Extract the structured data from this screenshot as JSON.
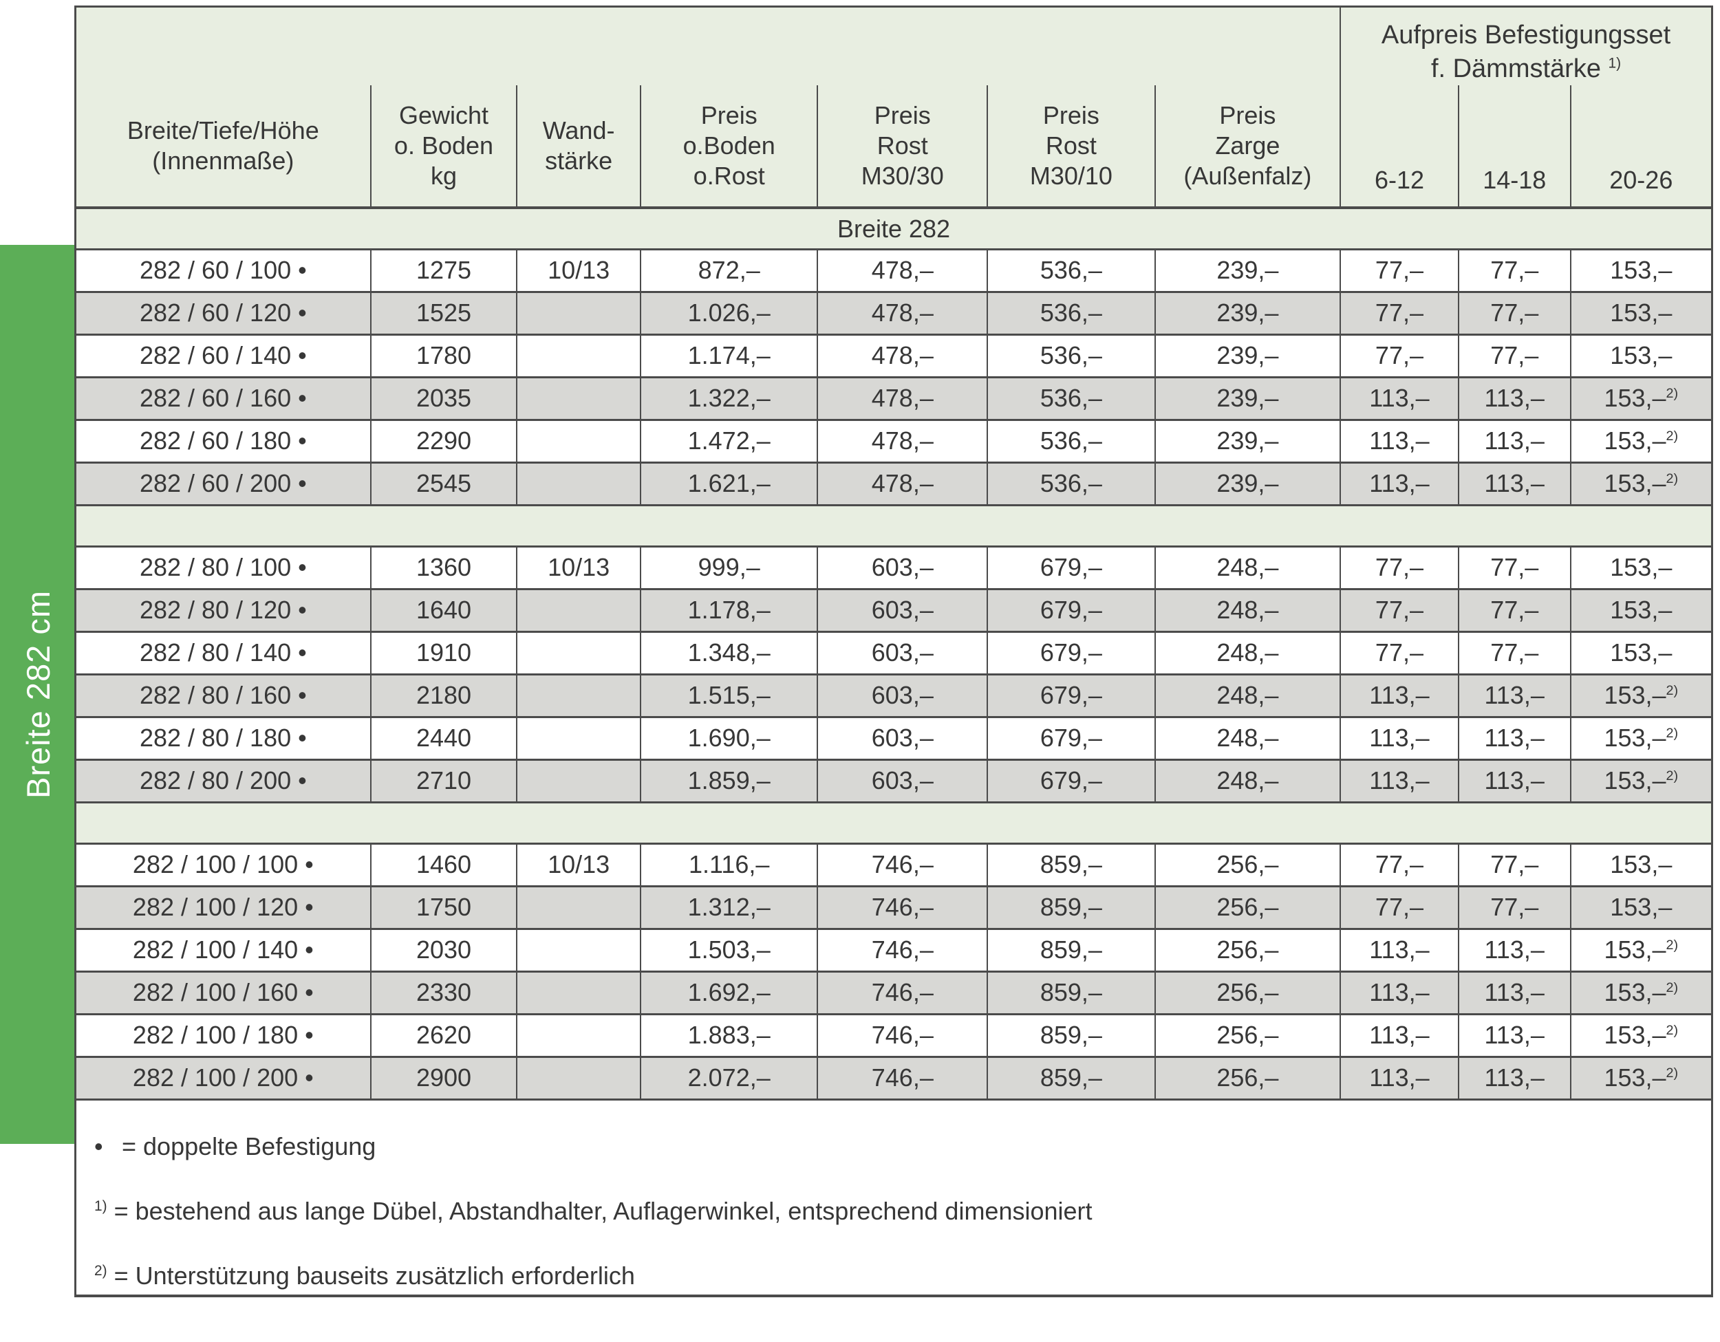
{
  "sidebar": {
    "label": "Breite 282 cm"
  },
  "header": {
    "group_header": {
      "line1": "Aufpreis Befestigungsset",
      "line2": "f. Dämmstärke",
      "sup": "1)"
    },
    "columns": [
      "Breite/Tiefe/Höhe\n(Innenmaße)",
      "Gewicht\no. Boden\nkg",
      "Wand-\nstärke",
      "Preis\no.Boden\no.Rost",
      "Preis\nRost\nM30/30",
      "Preis\nRost\nM30/10",
      "Preis\nZarge\n(Außenfalz)",
      "6-12",
      "14-18",
      "20-26"
    ]
  },
  "table": {
    "section_label": "Breite 282",
    "groups": [
      {
        "rows": [
          [
            "282 / 60 / 100 •",
            "1275",
            "10/13",
            "872,–",
            "478,–",
            "536,–",
            "239,–",
            "77,–",
            "77,–",
            "153,–"
          ],
          [
            "282 / 60 / 120 •",
            "1525",
            "",
            "1.026,–",
            "478,–",
            "536,–",
            "239,–",
            "77,–",
            "77,–",
            "153,–"
          ],
          [
            "282 / 60 / 140 •",
            "1780",
            "",
            "1.174,–",
            "478,–",
            "536,–",
            "239,–",
            "77,–",
            "77,–",
            "153,–"
          ],
          [
            "282 / 60 / 160 •",
            "2035",
            "",
            "1.322,–",
            "478,–",
            "536,–",
            "239,–",
            "113,–",
            "113,–",
            "153,–^2)"
          ],
          [
            "282 / 60 / 180 •",
            "2290",
            "",
            "1.472,–",
            "478,–",
            "536,–",
            "239,–",
            "113,–",
            "113,–",
            "153,–^2)"
          ],
          [
            "282 / 60 / 200 •",
            "2545",
            "",
            "1.621,–",
            "478,–",
            "536,–",
            "239,–",
            "113,–",
            "113,–",
            "153,–^2)"
          ]
        ]
      },
      {
        "rows": [
          [
            "282 / 80 / 100 •",
            "1360",
            "10/13",
            "999,–",
            "603,–",
            "679,–",
            "248,–",
            "77,–",
            "77,–",
            "153,–"
          ],
          [
            "282 / 80 / 120 •",
            "1640",
            "",
            "1.178,–",
            "603,–",
            "679,–",
            "248,–",
            "77,–",
            "77,–",
            "153,–"
          ],
          [
            "282 / 80 / 140 •",
            "1910",
            "",
            "1.348,–",
            "603,–",
            "679,–",
            "248,–",
            "77,–",
            "77,–",
            "153,–"
          ],
          [
            "282 / 80 / 160 •",
            "2180",
            "",
            "1.515,–",
            "603,–",
            "679,–",
            "248,–",
            "113,–",
            "113,–",
            "153,–^2)"
          ],
          [
            "282 / 80 / 180 •",
            "2440",
            "",
            "1.690,–",
            "603,–",
            "679,–",
            "248,–",
            "113,–",
            "113,–",
            "153,–^2)"
          ],
          [
            "282 / 80 / 200 •",
            "2710",
            "",
            "1.859,–",
            "603,–",
            "679,–",
            "248,–",
            "113,–",
            "113,–",
            "153,–^2)"
          ]
        ]
      },
      {
        "rows": [
          [
            "282 / 100 / 100 •",
            "1460",
            "10/13",
            "1.116,–",
            "746,–",
            "859,–",
            "256,–",
            "77,–",
            "77,–",
            "153,–"
          ],
          [
            "282 / 100 / 120 •",
            "1750",
            "",
            "1.312,–",
            "746,–",
            "859,–",
            "256,–",
            "77,–",
            "77,–",
            "153,–"
          ],
          [
            "282 / 100 / 140 •",
            "2030",
            "",
            "1.503,–",
            "746,–",
            "859,–",
            "256,–",
            "113,–",
            "113,–",
            "153,–^2)"
          ],
          [
            "282 / 100 / 160 •",
            "2330",
            "",
            "1.692,–",
            "746,–",
            "859,–",
            "256,–",
            "113,–",
            "113,–",
            "153,–^2)"
          ],
          [
            "282 / 100 / 180 •",
            "2620",
            "",
            "1.883,–",
            "746,–",
            "859,–",
            "256,–",
            "113,–",
            "113,–",
            "153,–^2)"
          ],
          [
            "282 / 100 / 200 •",
            "2900",
            "",
            "2.072,–",
            "746,–",
            "859,–",
            "256,–",
            "113,–",
            "113,–",
            "153,–^2)"
          ]
        ]
      }
    ]
  },
  "footnotes": [
    {
      "marker": "•",
      "raised": false,
      "text": "= doppelte Befestigung"
    },
    {
      "marker": "1)",
      "raised": true,
      "text": "= bestehend aus lange Dübel, Abstandhalter, Auflagerwinkel, entsprechend dimensioniert"
    },
    {
      "marker": "2)",
      "raised": true,
      "text": "= Unterstützung bauseits zusätzlich erforderlich"
    }
  ],
  "colors": {
    "green": "#5cae57",
    "band": "#e8eee1",
    "stripe": "#d8d8d5",
    "border": "#4b4b4b",
    "text": "#373737",
    "white": "#ffffff"
  }
}
